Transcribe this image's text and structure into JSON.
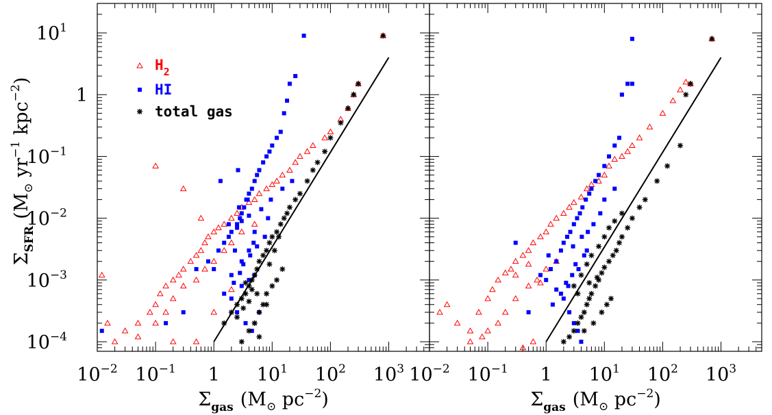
{
  "chart_data": [
    {
      "type": "scatter",
      "panel": "left",
      "xlabel": {
        "main": "Σ",
        "sub": "gas",
        "units": "(M",
        "units_after": " pc",
        "units_sup": "−2",
        "units_close": ")"
      },
      "ylabel": {
        "main": "Σ",
        "sub": "SFR",
        "text": "(M",
        "mid": " yr",
        "sup1": "−1",
        "mid2": " kpc",
        "sup2": "−2",
        "close": ")"
      },
      "x_scale": "log",
      "y_scale": "log",
      "xlim": [
        0.01,
        5000
      ],
      "ylim": [
        7e-05,
        30
      ],
      "x_ticks": [
        {
          "base": "10",
          "exp": "−2",
          "value": 0.01
        },
        {
          "base": "10",
          "exp": "−1",
          "value": 0.1
        },
        {
          "base": "1",
          "exp": "",
          "value": 1
        },
        {
          "base": "10",
          "exp": "1",
          "value": 10
        },
        {
          "base": "10",
          "exp": "2",
          "value": 100
        },
        {
          "base": "10",
          "exp": "3",
          "value": 1000
        }
      ],
      "y_ticks": [
        {
          "base": "10",
          "exp": "−4",
          "value": 0.0001
        },
        {
          "base": "10",
          "exp": "−3",
          "value": 0.001
        },
        {
          "base": "10",
          "exp": "−2",
          "value": 0.01
        },
        {
          "base": "10",
          "exp": "−1",
          "value": 0.1
        },
        {
          "base": "1",
          "exp": "",
          "value": 1
        },
        {
          "base": "10",
          "exp": "1",
          "value": 10
        }
      ],
      "legend": {
        "placement": "top-left",
        "entries": [
          {
            "label": "H",
            "sub": "2",
            "color": "#ff0000",
            "marker": "triangle"
          },
          {
            "label": "HI",
            "sub": "",
            "color": "#0000ff",
            "marker": "square"
          },
          {
            "label": "total gas",
            "sub": "",
            "color": "#000000",
            "marker": "asterisk"
          }
        ]
      },
      "fit_line": {
        "x": [
          1.0,
          1000
        ],
        "y": [
          0.0001,
          4.0
        ],
        "color": "#000000"
      },
      "series": [
        {
          "name": "H2",
          "color": "#ff0000",
          "marker": "triangle",
          "x": [
            0.012,
            0.015,
            0.02,
            0.03,
            0.05,
            0.08,
            0.1,
            0.12,
            0.15,
            0.2,
            0.25,
            0.3,
            0.4,
            0.5,
            0.6,
            0.7,
            0.8,
            1.0,
            1.2,
            1.5,
            2.0,
            2.5,
            3.0,
            4.0,
            5.0,
            6.0,
            8.0,
            10,
            12,
            15,
            20,
            25,
            30,
            40,
            50,
            80,
            100,
            150,
            200,
            250,
            300,
            800,
            0.05,
            0.1,
            0.15,
            0.2,
            0.3,
            0.5,
            0.7,
            1.0,
            1.5,
            2.0,
            3.0,
            5.0,
            0.3,
            0.1,
            0.2,
            0.5,
            1.0,
            2.0,
            0.6
          ],
          "y": [
            0.0012,
            0.0002,
            0.0001,
            0.00015,
            0.0002,
            0.0003,
            0.0004,
            0.0006,
            0.0008,
            0.001,
            0.0012,
            0.0015,
            0.002,
            0.0025,
            0.003,
            0.004,
            0.005,
            0.006,
            0.007,
            0.008,
            0.01,
            0.012,
            0.015,
            0.018,
            0.02,
            0.025,
            0.03,
            0.035,
            0.04,
            0.05,
            0.06,
            0.08,
            0.1,
            0.12,
            0.15,
            0.2,
            0.25,
            0.4,
            0.6,
            1.0,
            1.5,
            9.0,
            0.00012,
            0.0002,
            0.0003,
            0.0005,
            0.0008,
            0.001,
            0.0015,
            0.002,
            0.003,
            0.004,
            0.006,
            0.008,
            0.03,
            0.07,
            0.0001,
            0.0001,
            0.0003,
            0.0007,
            0.01
          ]
        },
        {
          "name": "HI",
          "color": "#0000ff",
          "marker": "square",
          "x": [
            0.012,
            0.15,
            0.3,
            0.5,
            0.8,
            1.0,
            1.2,
            1.5,
            1.8,
            2.0,
            2.3,
            2.5,
            2.8,
            3.0,
            3.3,
            3.6,
            4.0,
            4.5,
            5.0,
            5.5,
            6.0,
            7.0,
            8.0,
            9.0,
            10,
            12,
            14,
            16,
            18,
            20,
            25,
            35,
            3.0,
            4.0,
            5.0,
            2.0,
            2.5,
            3.5,
            4.5,
            6.0,
            1.5,
            2.2,
            2.8,
            3.2,
            4.2,
            5.5,
            7.5,
            2.5,
            3.0,
            4.0,
            6.5,
            9.5,
            15,
            22,
            2.0,
            3.0,
            4.0,
            1.8,
            2.7,
            3.8,
            5.0,
            1.3,
            2.6,
            4.8,
            8.5
          ],
          "y": [
            0.00015,
            0.0002,
            0.0003,
            0.0015,
            0.002,
            0.0015,
            0.003,
            0.004,
            0.005,
            0.006,
            0.003,
            0.008,
            0.01,
            0.012,
            0.015,
            0.02,
            0.025,
            0.03,
            0.04,
            0.05,
            0.06,
            0.08,
            0.1,
            0.12,
            0.15,
            0.2,
            0.25,
            0.5,
            0.8,
            1.5,
            2.0,
            9.0,
            0.0008,
            0.001,
            0.0012,
            0.0005,
            0.0003,
            0.0002,
            0.00015,
            0.0003,
            0.0006,
            0.0009,
            0.0013,
            0.0018,
            0.0025,
            0.0035,
            0.005,
            0.007,
            0.009,
            0.011,
            0.014,
            0.02,
            0.03,
            0.04,
            0.0012,
            0.002,
            0.003,
            0.008,
            0.015,
            0.02,
            0.006,
            0.04,
            0.06,
            0.004,
            0.01
          ]
        },
        {
          "name": "total gas",
          "color": "#000000",
          "marker": "asterisk",
          "x": [
            1.5,
            2.0,
            2.5,
            3.0,
            3.5,
            4.0,
            4.5,
            5.0,
            5.5,
            6.0,
            7.0,
            8.0,
            9.0,
            10,
            12,
            14,
            16,
            18,
            20,
            25,
            30,
            40,
            50,
            60,
            80,
            100,
            150,
            200,
            250,
            300,
            800,
            3.0,
            4.0,
            5.0,
            6.0,
            7.0,
            8.0,
            10,
            12,
            15,
            5.0,
            6.0,
            8.0,
            4.5,
            3.5,
            9.0,
            11,
            13,
            2.5,
            3.2,
            4.0,
            5.5
          ],
          "y": [
            0.0002,
            0.0003,
            0.0004,
            0.0005,
            0.0006,
            0.0008,
            0.001,
            0.0012,
            0.0015,
            0.002,
            0.0025,
            0.003,
            0.004,
            0.005,
            0.006,
            0.008,
            0.01,
            0.012,
            0.015,
            0.02,
            0.025,
            0.04,
            0.06,
            0.08,
            0.12,
            0.2,
            0.35,
            0.6,
            1.0,
            1.5,
            9.0,
            0.0001,
            0.00015,
            0.0002,
            0.0003,
            0.0004,
            0.0006,
            0.0008,
            0.001,
            0.0015,
            0.0002,
            0.00012,
            0.0004,
            0.0007,
            0.0009,
            0.0018,
            0.003,
            0.005,
            0.00025,
            0.00035,
            0.00045,
            0.0006
          ]
        }
      ]
    },
    {
      "type": "scatter",
      "panel": "right",
      "xlabel": {
        "main": "Σ",
        "sub": "gas",
        "units": "(M",
        "units_after": " pc",
        "units_sup": "−2",
        "units_close": ")"
      },
      "x_scale": "log",
      "y_scale": "log",
      "xlim": [
        0.01,
        5000
      ],
      "ylim": [
        7e-05,
        30
      ],
      "x_ticks": [
        {
          "base": "10",
          "exp": "−2",
          "value": 0.01
        },
        {
          "base": "10",
          "exp": "−1",
          "value": 0.1
        },
        {
          "base": "1",
          "exp": "",
          "value": 1
        },
        {
          "base": "10",
          "exp": "1",
          "value": 10
        },
        {
          "base": "10",
          "exp": "2",
          "value": 100
        },
        {
          "base": "10",
          "exp": "3",
          "value": 1000
        }
      ],
      "fit_line": {
        "x": [
          1.0,
          1000
        ],
        "y": [
          0.0001,
          4.0
        ],
        "color": "#000000"
      },
      "series": [
        {
          "name": "H2",
          "color": "#ff0000",
          "marker": "triangle",
          "x": [
            0.015,
            0.02,
            0.03,
            0.05,
            0.07,
            0.1,
            0.12,
            0.15,
            0.2,
            0.25,
            0.3,
            0.4,
            0.5,
            0.6,
            0.8,
            1.0,
            1.2,
            1.5,
            2.0,
            2.5,
            3.0,
            4.0,
            5.0,
            6.0,
            8.0,
            10,
            12,
            15,
            20,
            25,
            30,
            40,
            60,
            100,
            150,
            200,
            250,
            300,
            700,
            0.05,
            0.08,
            0.1,
            0.15,
            0.2,
            0.3,
            0.5,
            0.7,
            1.0,
            1.5,
            0.3,
            0.5,
            0.8,
            0.4,
            0.6
          ],
          "y": [
            0.0003,
            0.0004,
            0.0002,
            0.00015,
            0.0003,
            0.0005,
            0.0007,
            0.001,
            0.0013,
            0.0015,
            0.002,
            0.0025,
            0.003,
            0.004,
            0.005,
            0.006,
            0.008,
            0.01,
            0.012,
            0.015,
            0.018,
            0.022,
            0.03,
            0.035,
            0.04,
            0.05,
            0.07,
            0.09,
            0.1,
            0.12,
            0.15,
            0.2,
            0.3,
            0.5,
            0.8,
            1.2,
            1.6,
            1.5,
            8.0,
            0.0001,
            0.00012,
            0.00015,
            0.0002,
            0.0003,
            0.0005,
            0.0008,
            0.001,
            0.0015,
            0.002,
            0.0012,
            0.0018,
            0.0009,
            8e-05,
            0.0001
          ]
        },
        {
          "name": "HI",
          "color": "#0000ff",
          "marker": "square",
          "x": [
            0.8,
            1.0,
            1.2,
            1.5,
            1.8,
            2.0,
            2.3,
            2.6,
            3.0,
            3.4,
            3.8,
            4.2,
            4.8,
            5.5,
            6.0,
            7.0,
            8.0,
            10,
            12,
            15,
            18,
            20,
            25,
            30,
            2.0,
            2.5,
            3.0,
            3.5,
            4.0,
            1.5,
            2.2,
            2.8,
            3.2,
            4.5,
            5.0,
            1.3,
            1.8,
            2.4,
            3.6,
            0.5,
            0.3,
            6.5,
            8.5,
            10,
            15,
            30,
            1.1,
            2.9,
            4.1,
            5.2
          ],
          "y": [
            0.0012,
            0.001,
            0.0015,
            0.002,
            0.003,
            0.004,
            0.005,
            0.006,
            0.008,
            0.01,
            0.012,
            0.015,
            0.02,
            0.025,
            0.03,
            0.04,
            0.05,
            0.07,
            0.1,
            0.15,
            0.2,
            1.0,
            1.5,
            8.0,
            0.0005,
            0.0003,
            0.0002,
            0.00015,
            0.0001,
            0.0007,
            0.0009,
            0.0012,
            0.0018,
            0.0025,
            0.003,
            0.0004,
            0.0006,
            0.0008,
            0.0015,
            0.0003,
            0.004,
            0.008,
            0.012,
            0.02,
            0.03,
            1.5,
            0.0025,
            0.0035,
            0.005,
            0.006
          ]
        },
        {
          "name": "total gas",
          "color": "#000000",
          "marker": "asterisk",
          "x": [
            2.0,
            2.5,
            3.0,
            3.5,
            4.0,
            4.5,
            5.0,
            5.5,
            6.0,
            7.0,
            8.0,
            9.0,
            10,
            12,
            14,
            16,
            18,
            20,
            25,
            30,
            40,
            50,
            80,
            120,
            200,
            250,
            300,
            700,
            3.0,
            4.0,
            5.0,
            6.0,
            8.0,
            10,
            12,
            15,
            20,
            4.5,
            6.5,
            9.0,
            11,
            13,
            3.5,
            5.5,
            7.5
          ],
          "y": [
            0.0001,
            0.00012,
            0.00015,
            0.0002,
            0.00025,
            0.0003,
            0.0004,
            0.0005,
            0.0006,
            0.0008,
            0.001,
            0.0013,
            0.0016,
            0.002,
            0.0025,
            0.003,
            0.004,
            0.005,
            0.007,
            0.01,
            0.015,
            0.02,
            0.04,
            0.07,
            0.15,
            1.0,
            1.5,
            8.0,
            0.0008,
            0.0012,
            0.0018,
            0.0025,
            0.0035,
            0.005,
            0.007,
            0.009,
            0.012,
            0.00015,
            0.0002,
            0.0003,
            0.0004,
            0.0005,
            0.0006,
            0.0009,
            0.0011
          ]
        }
      ]
    }
  ]
}
